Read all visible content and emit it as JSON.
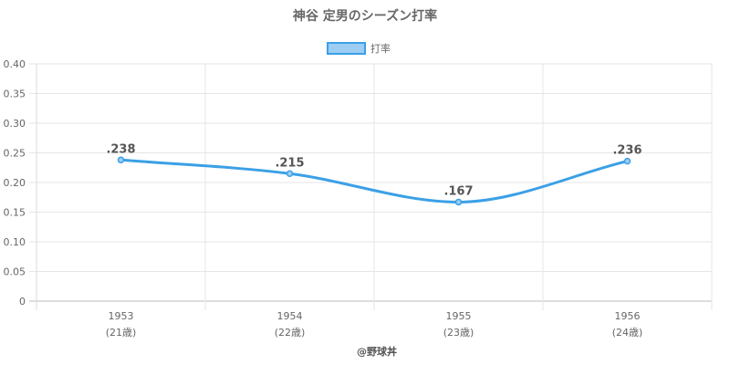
{
  "chart_data": {
    "type": "line",
    "title": "神谷 定男のシーズン打率",
    "categories": [
      "1953",
      "1954",
      "1955",
      "1956"
    ],
    "category_sublabels": [
      "(21歳)",
      "(22歳)",
      "(23歳)",
      "(24歳)"
    ],
    "series": [
      {
        "name": "打率",
        "values": [
          0.238,
          0.215,
          0.167,
          0.236
        ],
        "data_labels": [
          ".238",
          ".215",
          ".167",
          ".236"
        ],
        "color": "#3ba0e6",
        "fill": "#9dcdf2"
      }
    ],
    "ylim": [
      0,
      0.4
    ],
    "yticks": [
      0,
      0.05,
      0.1,
      0.15,
      0.2,
      0.25,
      0.3,
      0.35,
      0.4
    ],
    "ytick_labels": [
      "0",
      "0.05",
      "0.10",
      "0.15",
      "0.20",
      "0.25",
      "0.30",
      "0.35",
      "0.40"
    ],
    "grid": true,
    "legend": "top-center",
    "xlabel": "",
    "ylabel": ""
  },
  "credit": "@野球丼"
}
